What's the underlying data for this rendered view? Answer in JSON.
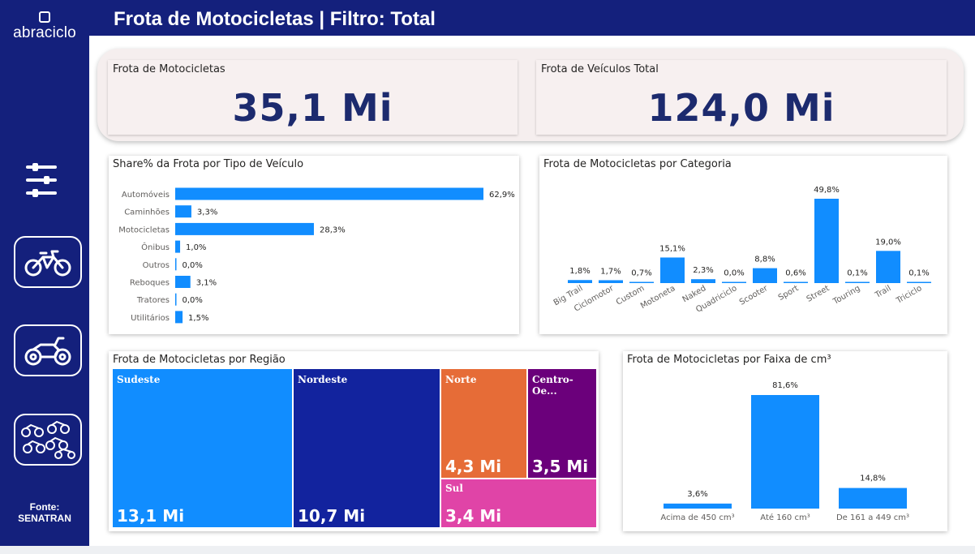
{
  "app": {
    "logo_text": "abraciclo",
    "title": "Frota de Motocicletas | Filtro: Total",
    "source_line1": "Fonte:",
    "source_line2": "SENATRAN"
  },
  "sidebar": {
    "buttons": [
      {
        "icon": "filter-sliders-icon"
      },
      {
        "icon": "bicycle-icon"
      },
      {
        "icon": "motorcycle-icon"
      },
      {
        "icon": "motorcycle-group-icon"
      }
    ]
  },
  "kpis": {
    "motorcycles": {
      "label": "Frota de Motocicletas",
      "value": "35,1 Mi"
    },
    "total": {
      "label": "Frota de Veículos Total",
      "value": "124,0 Mi"
    }
  },
  "colors": {
    "navy": "#14207c",
    "bar_blue": "#118dff",
    "sudeste": "#118dff",
    "nordeste": "#12239e",
    "norte": "#e66c37",
    "centro_oeste": "#6b007b",
    "sul": "#e044a7"
  },
  "chart_data": [
    {
      "type": "bar",
      "orientation": "horizontal",
      "title": "Share% da Frota por Tipo de Veículo",
      "categories": [
        "Automóveis",
        "Caminhões",
        "Motocicletas",
        "Ônibus",
        "Outros",
        "Reboques",
        "Tratores",
        "Utilitários"
      ],
      "values": [
        62.9,
        3.3,
        28.3,
        1.0,
        0.0,
        3.1,
        0.0,
        1.5
      ],
      "labels": [
        "62,9%",
        "3,3%",
        "28,3%",
        "1,0%",
        "0,0%",
        "3,1%",
        "0,0%",
        "1,5%"
      ],
      "xlim": [
        0,
        62.9
      ]
    },
    {
      "type": "bar",
      "title": "Frota de Motocicletas por Categoria",
      "categories": [
        "Big Trail",
        "Ciclomotor",
        "Custom",
        "Motoneta",
        "Naked",
        "Quadriciclo",
        "Scooter",
        "Sport",
        "Street",
        "Touring",
        "Trail",
        "Triciclo"
      ],
      "values": [
        1.8,
        1.7,
        0.7,
        15.1,
        2.3,
        0.0,
        8.8,
        0.6,
        49.8,
        0.1,
        19.0,
        0.1
      ],
      "labels": [
        "1,8%",
        "1,7%",
        "0,7%",
        "15,1%",
        "2,3%",
        "0,0%",
        "8,8%",
        "0,6%",
        "49,8%",
        "0,1%",
        "19,0%",
        "0,1%"
      ],
      "ylim": [
        0,
        49.8
      ]
    },
    {
      "type": "treemap",
      "title": "Frota de Motocicletas por Região",
      "categories": [
        "Sudeste",
        "Nordeste",
        "Norte",
        "Centro-Oe...",
        "Sul"
      ],
      "values": [
        13.1,
        10.7,
        4.3,
        3.5,
        3.4
      ],
      "labels": [
        "13,1 Mi",
        "10,7 Mi",
        "4,3 Mi",
        "3,5 Mi",
        "3,4 Mi"
      ]
    },
    {
      "type": "bar",
      "title": "Frota de Motocicletas por Faixa de cm³",
      "categories": [
        "Acima de 450 cm³",
        "Até 160 cm³",
        "De 161 a 449 cm³"
      ],
      "values": [
        3.6,
        81.6,
        14.8
      ],
      "labels": [
        "3,6%",
        "81,6%",
        "14,8%"
      ],
      "ylim": [
        0,
        81.6
      ]
    }
  ]
}
